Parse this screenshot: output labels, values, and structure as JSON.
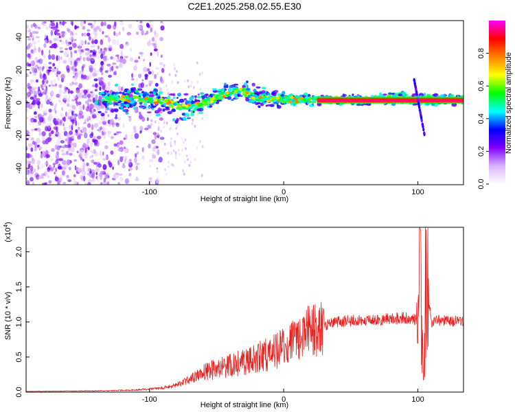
{
  "page_title": "C2E1.2025.258.02.55.E30",
  "chart_data": [
    {
      "type": "heatmap",
      "title": "C2E1.2025.258.02.55.E30",
      "xlabel": "Height of straight line (km)",
      "ylabel": "Frequency (Hz)",
      "xlim": [
        -192,
        134
      ],
      "ylim": [
        -50,
        50
      ],
      "xticks": [
        -100,
        0,
        100
      ],
      "yticks": [
        -40,
        -20,
        0,
        20,
        40
      ],
      "colorbar": {
        "label": "Normalized spectral amplitude",
        "range": [
          0,
          1
        ],
        "ticks": [
          0.0,
          0.2,
          0.4,
          0.6,
          0.8
        ],
        "tick_labels": [
          "0.0",
          "0.2",
          "0.4",
          "0.6",
          "0.8"
        ],
        "colormap": [
          "#ffffff",
          "#d9b3ff",
          "#8000ff",
          "#0000ff",
          "#00ffff",
          "#00ff00",
          "#ffff00",
          "#ff8000",
          "#ff0000",
          "#ff00ff"
        ]
      },
      "ridge": [
        {
          "x": -130,
          "f": 3
        },
        {
          "x": -110,
          "f": 2
        },
        {
          "x": -90,
          "f": 1
        },
        {
          "x": -75,
          "f": -3
        },
        {
          "x": -62,
          "f": -1
        },
        {
          "x": -45,
          "f": 5
        },
        {
          "x": -30,
          "f": 7
        },
        {
          "x": -20,
          "f": 3
        },
        {
          "x": 0,
          "f": 2
        },
        {
          "x": 20,
          "f": 1.5
        },
        {
          "x": 60,
          "f": 1.5
        },
        {
          "x": 85,
          "f": 3
        },
        {
          "x": 100,
          "f": 2
        },
        {
          "x": 134,
          "f": 2
        }
      ],
      "band": {
        "x_start": 25,
        "x_end": 134,
        "f_low": -0.5,
        "f_high": 3.5,
        "peak_amplitude": 0.85
      },
      "noisy_region": {
        "x_start": -192,
        "x_end": -100
      }
    },
    {
      "type": "line",
      "xlabel": "Height of straight line (km)",
      "ylabel": "SNR (10 * v/v)",
      "y_scale_label": "(x10",
      "y_scale_exp": "4",
      "xlim": [
        -192,
        134
      ],
      "ylim": [
        0,
        2.35
      ],
      "xticks": [
        -100,
        0,
        100
      ],
      "yticks": [
        0.0,
        0.5,
        1.0,
        1.5,
        2.0
      ],
      "ytick_labels": [
        "0.0",
        "0.5",
        "1.0",
        "1.5",
        "2.0"
      ],
      "line_color": "#e8201e",
      "series_envelope": [
        {
          "x": -192,
          "y": 0.01
        },
        {
          "x": -130,
          "y": 0.02
        },
        {
          "x": -110,
          "y": 0.03
        },
        {
          "x": -90,
          "y": 0.06
        },
        {
          "x": -80,
          "y": 0.1
        },
        {
          "x": -70,
          "y": 0.18
        },
        {
          "x": -60,
          "y": 0.28
        },
        {
          "x": -50,
          "y": 0.33
        },
        {
          "x": -40,
          "y": 0.38
        },
        {
          "x": -30,
          "y": 0.42
        },
        {
          "x": -20,
          "y": 0.5
        },
        {
          "x": -10,
          "y": 0.55
        },
        {
          "x": 0,
          "y": 0.63
        },
        {
          "x": 10,
          "y": 0.75
        },
        {
          "x": 20,
          "y": 0.88
        },
        {
          "x": 30,
          "y": 0.95
        },
        {
          "x": 40,
          "y": 1.0
        },
        {
          "x": 50,
          "y": 1.02
        },
        {
          "x": 60,
          "y": 1.02
        },
        {
          "x": 70,
          "y": 1.03
        },
        {
          "x": 80,
          "y": 1.04
        },
        {
          "x": 90,
          "y": 1.06
        },
        {
          "x": 97,
          "y": 1.05
        },
        {
          "x": 100,
          "y": 0.95
        },
        {
          "x": 102,
          "y": 2.3
        },
        {
          "x": 104,
          "y": 0.2
        },
        {
          "x": 106,
          "y": 1.65
        },
        {
          "x": 110,
          "y": 1.0
        },
        {
          "x": 120,
          "y": 1.03
        },
        {
          "x": 134,
          "y": 1.0
        }
      ]
    }
  ]
}
